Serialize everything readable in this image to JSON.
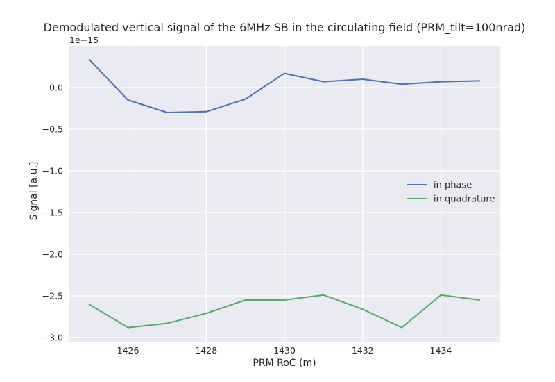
{
  "chart_data": {
    "type": "line",
    "title": "Demodulated vertical signal of the 6MHz SB in the circulating field (PRM_tilt=100nrad)",
    "xlabel": "PRM RoC (m)",
    "ylabel": "Signal [a.u.]",
    "offset_text": "1e−15",
    "x": [
      1425,
      1426,
      1427,
      1428,
      1429,
      1430,
      1431,
      1432,
      1433,
      1434,
      1435
    ],
    "series": [
      {
        "name": "in phase",
        "color": "#4c72b0",
        "values": [
          3.4e-16,
          -1.5e-16,
          -3e-16,
          -2.9e-16,
          -1.4e-16,
          1.7e-16,
          7e-17,
          1e-16,
          4e-17,
          7e-17,
          8e-17
        ]
      },
      {
        "name": "in quadrature",
        "color": "#55a868",
        "values": [
          -2.6e-15,
          -2.88e-15,
          -2.83e-15,
          -2.71e-15,
          -2.55e-15,
          -2.55e-15,
          -2.49e-15,
          -2.66e-15,
          -2.88e-15,
          -2.49e-15,
          -2.55e-15
        ]
      }
    ],
    "xticks": [
      1426,
      1428,
      1430,
      1432,
      1434
    ],
    "xtick_labels": [
      "1426",
      "1428",
      "1430",
      "1432",
      "1434"
    ],
    "yticks": [
      0.0,
      -0.5,
      -1.0,
      -1.5,
      -2.0,
      -2.5,
      -3.0
    ],
    "ytick_labels": [
      "0.0",
      "−0.5",
      "−1.0",
      "−1.5",
      "−2.0",
      "−2.5",
      "−3.0"
    ],
    "y_scale_factor": 1e-15,
    "xlim": [
      1424.5,
      1435.5
    ],
    "ylim": [
      -3.05,
      0.5
    ],
    "grid": true,
    "legend_position": "center-right",
    "style": {
      "background": "#eaeaf2",
      "grid_color": "#ffffff"
    }
  }
}
